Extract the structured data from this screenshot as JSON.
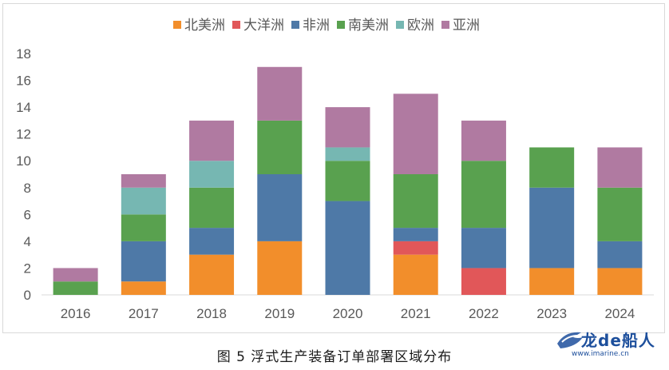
{
  "chart_data": {
    "type": "bar",
    "stacked": true,
    "categories": [
      "2016",
      "2017",
      "2018",
      "2019",
      "2020",
      "2021",
      "2022",
      "2023",
      "2024"
    ],
    "series": [
      {
        "name": "北美洲",
        "color": "#f28e2b",
        "values": [
          0,
          1,
          3,
          4,
          0,
          3,
          0,
          2,
          2
        ]
      },
      {
        "name": "大洋洲",
        "color": "#e15759",
        "values": [
          0,
          0,
          0,
          0,
          0,
          1,
          2,
          0,
          0
        ]
      },
      {
        "name": "非洲",
        "color": "#4e79a7",
        "values": [
          0,
          3,
          2,
          5,
          7,
          1,
          3,
          6,
          2
        ]
      },
      {
        "name": "南美洲",
        "color": "#59a14f",
        "values": [
          1,
          2,
          3,
          4,
          3,
          4,
          5,
          3,
          4
        ]
      },
      {
        "name": "欧洲",
        "color": "#76b7b2",
        "values": [
          0,
          2,
          2,
          0,
          1,
          0,
          0,
          0,
          0
        ]
      },
      {
        "name": "亚洲",
        "color": "#b07aa1",
        "values": [
          1,
          1,
          3,
          4,
          3,
          6,
          3,
          0,
          3
        ]
      }
    ],
    "ylim": [
      0,
      18
    ],
    "yticks": [
      0,
      2,
      4,
      6,
      8,
      10,
      12,
      14,
      16,
      18
    ],
    "legend_position": "top",
    "grid": false
  },
  "caption": "图 5 浮式生产装备订单部署区域分布",
  "watermark": {
    "brand": "龙de船人",
    "url": "www.imarine.cn"
  }
}
